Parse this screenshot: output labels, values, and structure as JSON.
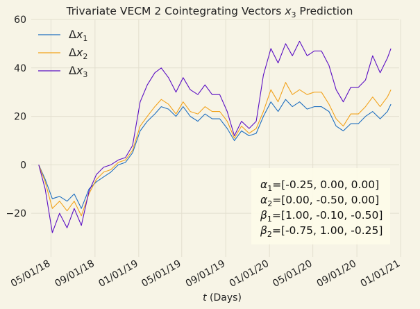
{
  "chart_data": {
    "type": "line",
    "title": "Trivariate VECM 2 Cointegrating Vectors $x_3$ Prediction",
    "title_parts": [
      "Trivariate VECM 2 Cointegrating Vectors ",
      "x",
      "3",
      " Prediction"
    ],
    "xlabel": "$t$ (Days)",
    "xlabel_parts": [
      "t",
      " (Days)"
    ],
    "ylabel": "",
    "x_axis_type": "date",
    "x_range": [
      "2018-03-07",
      "2020-12-28"
    ],
    "ylim": [
      -38,
      60
    ],
    "x_tick_labels": [
      "05/01/18",
      "09/01/18",
      "01/01/19",
      "05/01/19",
      "09/01/19",
      "01/01/20",
      "05/01/20",
      "09/01/20",
      "01/01/21"
    ],
    "x_tick_dates": [
      "2018-05-01",
      "2018-09-01",
      "2019-01-01",
      "2019-05-01",
      "2019-09-01",
      "2020-01-01",
      "2020-05-01",
      "2020-09-01",
      "2021-01-01"
    ],
    "y_ticks": [
      -20,
      0,
      20,
      40,
      60
    ],
    "y_tick_labels": [
      "−20",
      "0",
      "20",
      "40",
      "60"
    ],
    "grid": true,
    "legend_position": "top-left",
    "x": [
      "2018-03-28",
      "2018-04-15",
      "2018-05-05",
      "2018-05-25",
      "2018-06-15",
      "2018-07-05",
      "2018-07-25",
      "2018-08-15",
      "2018-09-05",
      "2018-09-25",
      "2018-10-15",
      "2018-11-05",
      "2018-11-25",
      "2018-12-15",
      "2019-01-05",
      "2019-01-25",
      "2019-02-15",
      "2019-03-05",
      "2019-03-25",
      "2019-04-15",
      "2019-05-05",
      "2019-05-25",
      "2019-06-15",
      "2019-07-05",
      "2019-07-25",
      "2019-08-15",
      "2019-09-05",
      "2019-09-25",
      "2019-10-15",
      "2019-11-05",
      "2019-11-25",
      "2019-12-15",
      "2020-01-05",
      "2020-01-25",
      "2020-02-15",
      "2020-03-05",
      "2020-03-25",
      "2020-04-15",
      "2020-05-05",
      "2020-05-25",
      "2020-06-15",
      "2020-07-05",
      "2020-07-25",
      "2020-08-15",
      "2020-09-05",
      "2020-09-25",
      "2020-10-15",
      "2020-11-05",
      "2020-11-25",
      "2020-12-05"
    ],
    "series": [
      {
        "name": "Δx1",
        "name_parts": [
          "Δ",
          "x",
          "1"
        ],
        "color": "#1f6fc0",
        "values": [
          0,
          -6,
          -14,
          -13,
          -15,
          -12,
          -18,
          -10,
          -7,
          -5,
          -3,
          0,
          1,
          5,
          14,
          18,
          21,
          24,
          23,
          20,
          24,
          20,
          18,
          21,
          19,
          19,
          15,
          10,
          14,
          12,
          13,
          20,
          26,
          22,
          27,
          24,
          26,
          23,
          24,
          24,
          22,
          16,
          14,
          17,
          17,
          20,
          22,
          19,
          22,
          25
        ]
      },
      {
        "name": "Δx2",
        "name_parts": [
          "Δ",
          "x",
          "2"
        ],
        "color": "#f2a21b",
        "values": [
          0,
          -7,
          -18,
          -15,
          -19,
          -15,
          -21,
          -12,
          -6,
          -3,
          -2,
          1,
          2,
          6,
          16,
          20,
          24,
          27,
          25,
          21,
          26,
          22,
          21,
          24,
          22,
          22,
          18,
          11,
          16,
          13,
          15,
          22,
          31,
          26,
          34,
          29,
          31,
          29,
          30,
          30,
          25,
          19,
          16,
          21,
          21,
          24,
          28,
          24,
          28,
          31
        ]
      },
      {
        "name": "Δx3",
        "name_parts": [
          "Δ",
          "x",
          "3"
        ],
        "color": "#5a0dc4",
        "values": [
          0,
          -10,
          -28,
          -20,
          -26,
          -18,
          -25,
          -11,
          -4,
          -1,
          0,
          2,
          3,
          8,
          26,
          33,
          38,
          40,
          36,
          30,
          36,
          31,
          29,
          33,
          29,
          29,
          22,
          12,
          18,
          15,
          18,
          37,
          48,
          42,
          50,
          45,
          51,
          45,
          47,
          47,
          41,
          31,
          26,
          32,
          32,
          35,
          45,
          38,
          44,
          48
        ]
      }
    ],
    "annotation_lines": [
      {
        "sym": "α",
        "sub": "1",
        "val": "=[-0.25, 0.00, 0.00]"
      },
      {
        "sym": "α",
        "sub": "2",
        "val": "=[0.00, -0.50, 0.00]"
      },
      {
        "sym": "β",
        "sub": "1",
        "val": "=[1.00, -0.10, -0.50]"
      },
      {
        "sym": "β",
        "sub": "2",
        "val": "=[-0.75, 1.00, -0.25]"
      }
    ],
    "colors": {
      "background": "#f7f4e6",
      "grid": "#e3dfcf",
      "annotation_box": "#fdfbe8"
    }
  }
}
